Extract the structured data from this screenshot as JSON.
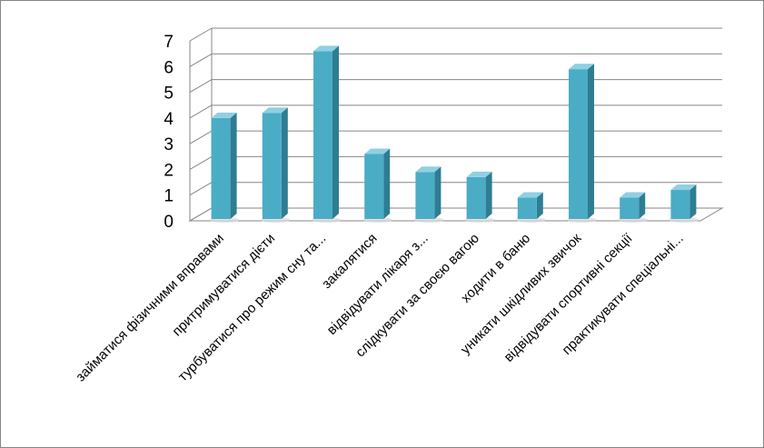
{
  "chart_data": {
    "type": "bar",
    "title": "",
    "xlabel": "",
    "ylabel": "",
    "ylim": [
      0,
      7
    ],
    "yticks": [
      "0",
      "1",
      "2",
      "3",
      "4",
      "5",
      "6",
      "7"
    ],
    "grid": true,
    "legend": "none",
    "style": "3d-column",
    "categories": [
      "займатися фізичними вправами",
      "притримуватися дієти",
      "турбуватися про режим сну та...",
      "закалятися",
      "відвідувати лікаря з...",
      "слідкувати за своєю вагою",
      "ходити в баню",
      "уникати шкідливих звичок",
      "відвідувати спортивні секції",
      "практикувати спеціальні..."
    ],
    "values": [
      4,
      4.2,
      6.6,
      2.6,
      1.9,
      1.7,
      0.9,
      5.9,
      0.9,
      1.2
    ],
    "colors": {
      "bar_front": "#4bacc6",
      "bar_side": "#2e7d92",
      "bar_top": "#8fd0e2",
      "grid": "#868686"
    }
  }
}
